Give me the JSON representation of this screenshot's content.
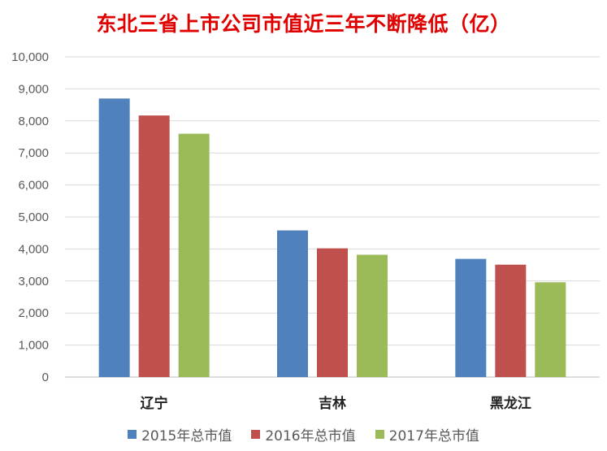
{
  "chart_data": {
    "type": "bar",
    "title": "东北三省上市公司市值近三年不断降低（亿）",
    "categories": [
      "辽宁",
      "吉林",
      "黑龙江"
    ],
    "series": [
      {
        "name": "2015年总市值",
        "color": "#4f81bd",
        "values": [
          8700,
          4580,
          3690
        ]
      },
      {
        "name": "2016年总市值",
        "color": "#c0504d",
        "values": [
          8170,
          4020,
          3510
        ]
      },
      {
        "name": "2017年总市值",
        "color": "#9bbb59",
        "values": [
          7600,
          3820,
          2960
        ]
      }
    ],
    "ylim": [
      0,
      10000
    ],
    "yticks": [
      "0",
      "1,000",
      "2,000",
      "3,000",
      "4,000",
      "5,000",
      "6,000",
      "7,000",
      "8,000",
      "9,000",
      "10,000"
    ],
    "grid": true,
    "legend": "bottom"
  }
}
